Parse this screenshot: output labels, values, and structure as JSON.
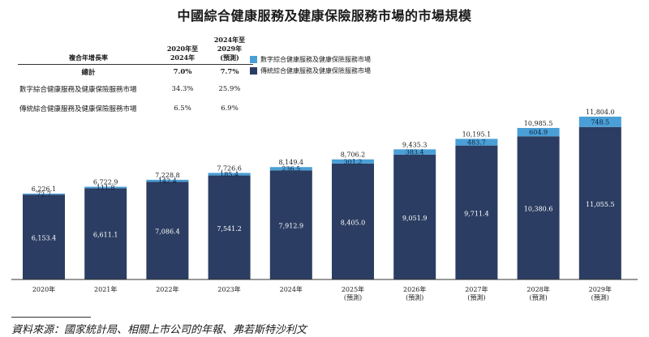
{
  "title": "中國綜合健康服務及健康保險服務市場的市場規模",
  "cagr_table": {
    "header": {
      "label": "複合年增長率",
      "col1": "2020年至\n2024年",
      "col2": "2024年至\n2029年\n(預測)"
    },
    "rows": [
      {
        "label": "總計",
        "v1": "7.0%",
        "v2": "7.7%"
      },
      {
        "label": "數字綜合健康服務及健康保險服務市場",
        "v1": "34.3%",
        "v2": "25.9%"
      },
      {
        "label": "傳統綜合健康服務及健康保險服務市場",
        "v1": "6.5%",
        "v2": "6.9%"
      }
    ]
  },
  "legend": [
    {
      "label": "數字綜合健康服務及健康保險服務市場",
      "color": "#4a9fd6"
    },
    {
      "label": "傳統綜合健康服務及健康保險服務市場",
      "color": "#2b3d62"
    }
  ],
  "source": "資料來源：國家統計局、相關上市公司的年報、弗若斯特沙利文",
  "chart_data": {
    "type": "bar",
    "stacked": true,
    "title": "中國綜合健康服務及健康保險服務市場的市場規模",
    "categories": [
      "2020年",
      "2021年",
      "2022年",
      "2023年",
      "2024年",
      "2025年",
      "2026年",
      "2027年",
      "2028年",
      "2029年"
    ],
    "category_sublabels": [
      "",
      "",
      "",
      "",
      "",
      "(預測)",
      "(預測)",
      "(預測)",
      "(預測)",
      "(預測)"
    ],
    "series": [
      {
        "name": "傳統綜合健康服務及健康保險服務市場",
        "color": "#2b3d62",
        "values": [
          6153.4,
          6611.1,
          7086.4,
          7541.2,
          7912.9,
          8405.0,
          9051.9,
          9711.4,
          10380.6,
          11055.5
        ],
        "labels": [
          "6,153.4",
          "6,611.1",
          "7,086.4",
          "7,541.2",
          "7,912.9",
          "8,405.0",
          "9,051.9",
          "9,711.4",
          "10,380.6",
          "11,055.5"
        ]
      },
      {
        "name": "數字綜合健康服務及健康保險服務市場",
        "color": "#4a9fd6",
        "values": [
          72.7,
          111.8,
          142.4,
          185.4,
          236.5,
          301.2,
          383.4,
          483.7,
          604.9,
          748.5
        ],
        "labels": [
          "72.7",
          "111.8",
          "142.4",
          "185.4",
          "236.5",
          "301.2",
          "383.4",
          "483.7",
          "604.9",
          "748.5"
        ]
      }
    ],
    "totals": [
      6226.1,
      6722.9,
      7228.8,
      7726.6,
      8149.4,
      8706.2,
      9435.3,
      10195.1,
      10985.5,
      11804.0
    ],
    "total_labels": [
      "6,226.1",
      "6,722.9",
      "7,228.8",
      "7,726.6",
      "8,149.4",
      "8,706.2",
      "9,435.3",
      "10,195.1",
      "10,985.5",
      "11,804.0"
    ],
    "ylim": [
      0,
      11804.0
    ],
    "xlabel": "",
    "ylabel": "",
    "grid": false,
    "legend_position": "top-left"
  }
}
